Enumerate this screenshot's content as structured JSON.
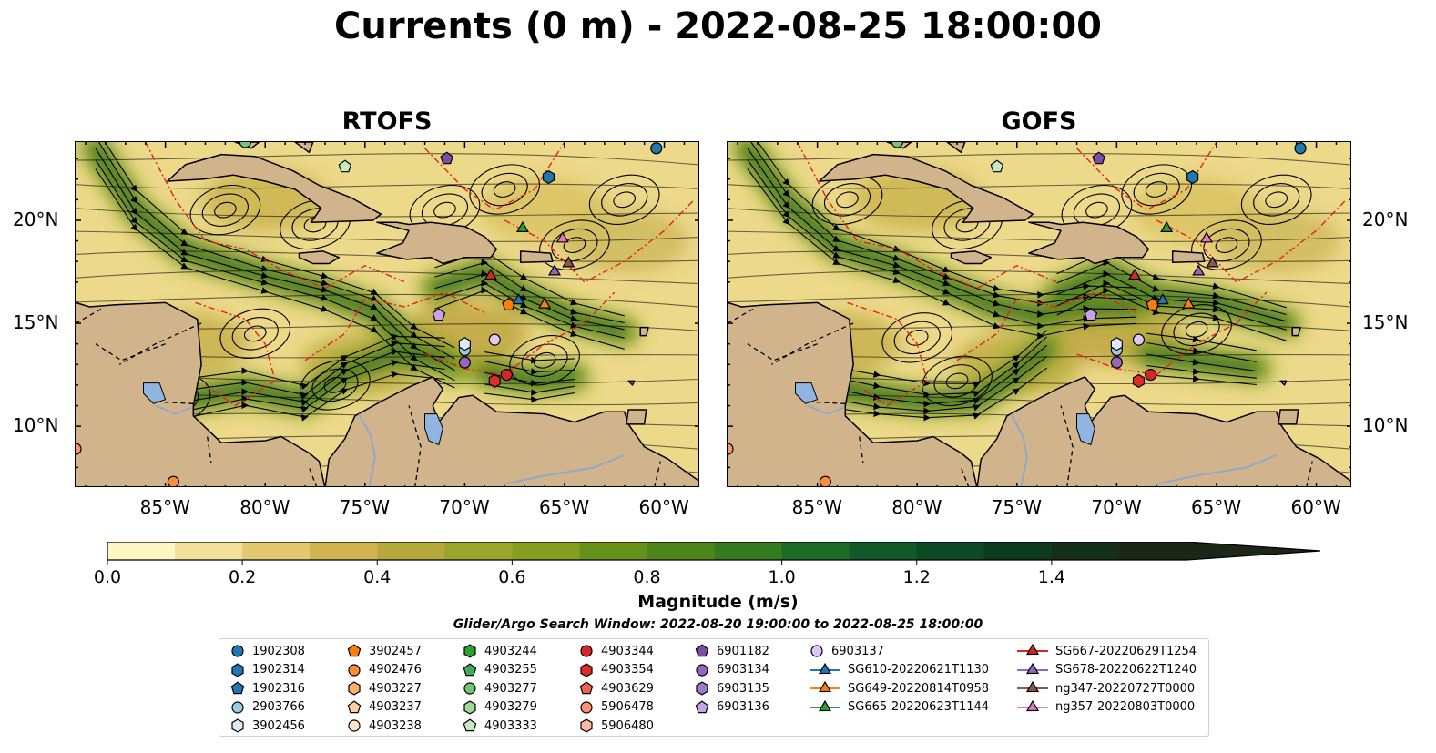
{
  "title": "Currents (0 m) - 2022-08-25 18:00:00",
  "panels": [
    {
      "title": "RTOFS"
    },
    {
      "title": "GOFS"
    }
  ],
  "map": {
    "lon_ticks": [
      "85°W",
      "80°W",
      "75°W",
      "70°W",
      "65°W",
      "60°W"
    ],
    "lat_ticks": [
      "20°N",
      "15°N",
      "10°N"
    ],
    "extent": {
      "lon_min": -89.5,
      "lon_max": -58.2,
      "lat_min": 7.0,
      "lat_max": 23.8
    },
    "land_color": "#d2b48c",
    "water_color": "#8fb5e0"
  },
  "colorbar": {
    "label": "Magnitude (m/s)",
    "ticks": [
      "0.0",
      "0.2",
      "0.4",
      "0.6",
      "0.8",
      "1.0",
      "1.2",
      "1.4"
    ],
    "colors": [
      "#fef6c3",
      "#f2e098",
      "#e2c970",
      "#d1b34f",
      "#b6a93b",
      "#9aa529",
      "#82a01e",
      "#67921a",
      "#4e8519",
      "#347a1f",
      "#1b6b27",
      "#0f5a28",
      "#0b4a22",
      "#0d3b1d",
      "#15301a",
      "#1a2716"
    ],
    "extend": "max"
  },
  "window_text": "Glider/Argo Search Window: 2022-08-20 19:00:00 to 2022-08-25 18:00:00",
  "legend": [
    {
      "label": "1902308",
      "marker": "circle",
      "color": "#1f77b4"
    },
    {
      "label": "1902314",
      "marker": "hexagon",
      "color": "#1f77b4"
    },
    {
      "label": "1902316",
      "marker": "pentagon",
      "color": "#1f77b4"
    },
    {
      "label": "2903766",
      "marker": "circle",
      "color": "#9ecae1"
    },
    {
      "label": "3902456",
      "marker": "hexagon",
      "color": "#deebf7"
    },
    {
      "label": "3902457",
      "marker": "pentagon",
      "color": "#ff7f0e"
    },
    {
      "label": "4902476",
      "marker": "circle",
      "color": "#fd8d3c"
    },
    {
      "label": "4903227",
      "marker": "hexagon",
      "color": "#fdae6b"
    },
    {
      "label": "4903237",
      "marker": "pentagon",
      "color": "#fdd0a2"
    },
    {
      "label": "4903238",
      "marker": "circle",
      "color": "#fee6ce"
    },
    {
      "label": "4903244",
      "marker": "hexagon",
      "color": "#2ca02c"
    },
    {
      "label": "4903255",
      "marker": "pentagon",
      "color": "#41ab5d"
    },
    {
      "label": "4903277",
      "marker": "circle",
      "color": "#74c476"
    },
    {
      "label": "4903279",
      "marker": "hexagon",
      "color": "#a1d99b"
    },
    {
      "label": "4903333",
      "marker": "pentagon",
      "color": "#c7e9c0"
    },
    {
      "label": "4903344",
      "marker": "circle",
      "color": "#d62728"
    },
    {
      "label": "4903354",
      "marker": "hexagon",
      "color": "#de2d26"
    },
    {
      "label": "4903629",
      "marker": "pentagon",
      "color": "#ef6548"
    },
    {
      "label": "5906478",
      "marker": "circle",
      "color": "#fc9272"
    },
    {
      "label": "5906480",
      "marker": "hexagon",
      "color": "#fcbba1"
    },
    {
      "label": "6901182",
      "marker": "pentagon",
      "color": "#7b4ea3"
    },
    {
      "label": "6903134",
      "marker": "circle",
      "color": "#9467bd"
    },
    {
      "label": "6903135",
      "marker": "hexagon",
      "color": "#a07ad0"
    },
    {
      "label": "6903136",
      "marker": "pentagon",
      "color": "#c5a5e6"
    },
    {
      "label": "6903137",
      "marker": "circle",
      "color": "#dcc8f0"
    },
    {
      "label": "SG610-20220621T1130",
      "marker": "triangle-line",
      "color": "#1f77b4"
    },
    {
      "label": "SG649-20220814T0958",
      "marker": "triangle-line",
      "color": "#ff7f0e"
    },
    {
      "label": "SG665-20220623T1144",
      "marker": "triangle-line",
      "color": "#2ca02c"
    },
    {
      "label": "SG667-20220629T1254",
      "marker": "triangle-line",
      "color": "#d62728"
    },
    {
      "label": "SG678-20220622T1240",
      "marker": "triangle-line",
      "color": "#9467bd"
    },
    {
      "label": "ng347-20220727T0000",
      "marker": "triangle-line",
      "color": "#8c564b"
    },
    {
      "label": "ng357-20220803T0000",
      "marker": "triangle-line",
      "color": "#e377c2"
    }
  ],
  "markers_on_map": [
    {
      "id": "2903766",
      "lon": -70.0,
      "lat": 13.7
    },
    {
      "id": "3902456",
      "lon": -70.0,
      "lat": 14.0
    },
    {
      "id": "6903134",
      "lon": -70.0,
      "lat": 13.1
    },
    {
      "id": "6903137",
      "lon": -68.5,
      "lat": 14.2
    },
    {
      "id": "6903136",
      "lon": -71.3,
      "lat": 15.4
    },
    {
      "id": "4903344",
      "lon": -67.9,
      "lat": 12.5
    },
    {
      "id": "4903354",
      "lon": -68.5,
      "lat": 12.2
    },
    {
      "id": "1902308",
      "lon": -60.4,
      "lat": 23.5
    },
    {
      "id": "1902314",
      "lon": -65.8,
      "lat": 22.1
    },
    {
      "id": "6901182",
      "lon": -70.9,
      "lat": 23.0
    },
    {
      "id": "4903333",
      "lon": -76.0,
      "lat": 22.6
    },
    {
      "id": "4903277",
      "lon": -81.0,
      "lat": 23.8
    },
    {
      "id": "5906478",
      "lon": -89.5,
      "lat": 8.9
    },
    {
      "id": "4902476",
      "lon": -84.6,
      "lat": 7.3
    },
    {
      "id": "3902457",
      "lon": -67.8,
      "lat": 15.9
    },
    {
      "id": "SG610-20220621T1130",
      "lon": -67.3,
      "lat": 16.1
    },
    {
      "id": "SG649-20220814T0958",
      "lon": -66.0,
      "lat": 15.9
    },
    {
      "id": "SG665-20220623T1144",
      "lon": -67.1,
      "lat": 19.6
    },
    {
      "id": "SG667-20220629T1254",
      "lon": -68.7,
      "lat": 17.3
    },
    {
      "id": "SG678-20220622T1240",
      "lon": -65.5,
      "lat": 17.5
    },
    {
      "id": "ng347-20220727T0000",
      "lon": -64.8,
      "lat": 17.9
    },
    {
      "id": "ng357-20220803T0000",
      "lon": -65.1,
      "lat": 19.1
    }
  ]
}
